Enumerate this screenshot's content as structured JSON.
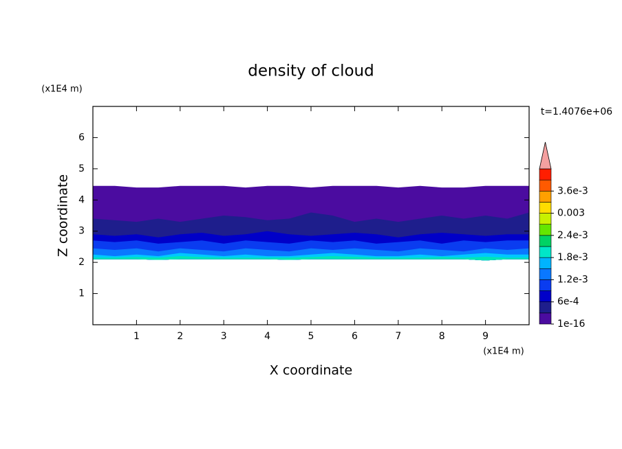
{
  "chart_data": {
    "type": "contour",
    "title": "density of cloud",
    "x_label": "X coordinate",
    "y_label": "Z coordinate",
    "x_unit": "(x1E4 m)",
    "y_unit": "(x1E4 m)",
    "time_label": "t=1.4076e+06",
    "xlim": [
      0,
      10
    ],
    "xticks": [
      1,
      2,
      3,
      4,
      5,
      6,
      7,
      8,
      9
    ],
    "ylim": [
      0,
      7
    ],
    "yticks": [
      1,
      2,
      3,
      4,
      5,
      6
    ],
    "x": [
      0,
      0.5,
      1,
      1.5,
      2,
      2.5,
      3,
      3.5,
      4,
      4.5,
      5,
      5.5,
      6,
      6.5,
      7,
      7.5,
      8,
      8.5,
      9,
      9.5,
      10
    ],
    "base": [
      2.1,
      2.1,
      2.1,
      2.08,
      2.1,
      2.1,
      2.1,
      2.1,
      2.1,
      2.08,
      2.1,
      2.1,
      2.1,
      2.1,
      2.1,
      2.1,
      2.1,
      2.1,
      2.06,
      2.1,
      2.1
    ],
    "bands": [
      {
        "color": "#4b0ca0",
        "top": [
          4.45,
          4.45,
          4.4,
          4.4,
          4.45,
          4.45,
          4.45,
          4.4,
          4.45,
          4.45,
          4.4,
          4.45,
          4.45,
          4.45,
          4.4,
          4.45,
          4.4,
          4.4,
          4.45,
          4.45,
          4.45
        ]
      },
      {
        "color": "#1e1e8c",
        "top": [
          3.4,
          3.35,
          3.3,
          3.4,
          3.3,
          3.4,
          3.5,
          3.45,
          3.35,
          3.4,
          3.6,
          3.5,
          3.3,
          3.4,
          3.3,
          3.4,
          3.5,
          3.4,
          3.5,
          3.4,
          3.6
        ]
      },
      {
        "color": "#0000c8",
        "top": [
          2.9,
          2.85,
          2.9,
          2.8,
          2.9,
          2.95,
          2.85,
          2.9,
          3.0,
          2.9,
          2.85,
          2.9,
          2.95,
          2.9,
          2.8,
          2.9,
          2.95,
          2.9,
          2.85,
          2.9,
          2.9
        ]
      },
      {
        "color": "#0a3cf0",
        "top": [
          2.7,
          2.65,
          2.7,
          2.6,
          2.65,
          2.7,
          2.6,
          2.7,
          2.65,
          2.6,
          2.7,
          2.65,
          2.7,
          2.6,
          2.65,
          2.7,
          2.6,
          2.7,
          2.65,
          2.7,
          2.7
        ]
      },
      {
        "color": "#0a78ff",
        "top": [
          2.45,
          2.4,
          2.45,
          2.35,
          2.45,
          2.4,
          2.35,
          2.45,
          2.4,
          2.35,
          2.45,
          2.4,
          2.45,
          2.4,
          2.35,
          2.45,
          2.4,
          2.35,
          2.45,
          2.4,
          2.45
        ]
      },
      {
        "color": "#00c8ff",
        "top": [
          2.25,
          2.2,
          2.25,
          2.2,
          2.3,
          2.25,
          2.2,
          2.25,
          2.2,
          2.2,
          2.25,
          2.3,
          2.25,
          2.2,
          2.2,
          2.25,
          2.2,
          2.25,
          2.3,
          2.25,
          2.25
        ]
      },
      {
        "color": "#00e6b4",
        "top": [
          2.15,
          2.15,
          2.17,
          2.15,
          2.2,
          2.17,
          2.15,
          2.15,
          2.15,
          2.15,
          2.17,
          2.2,
          2.18,
          2.15,
          2.15,
          2.15,
          2.17,
          2.15,
          2.18,
          2.15,
          2.15
        ]
      }
    ],
    "colorbar": {
      "colors": [
        "#4b0ca0",
        "#1e1e8c",
        "#0000c8",
        "#0a3cf0",
        "#0a78ff",
        "#00b4ff",
        "#00e6c8",
        "#00d264",
        "#64e600",
        "#c8f000",
        "#ffdc00",
        "#ffa000",
        "#ff5a00",
        "#ff1e00"
      ],
      "extend_color": "#f4a0a0",
      "ticks": [
        1e-16,
        {
          "value": 0.0006,
          "label": "6e-4"
        },
        {
          "value": 0.0012,
          "label": "1.2e-3"
        },
        {
          "value": 0.0018,
          "label": "1.8e-3"
        },
        {
          "value": 0.0024,
          "label": "2.4e-3"
        },
        0.003,
        {
          "value": 0.0036,
          "label": "3.6e-3"
        }
      ],
      "clim": [
        1e-16,
        0.0042
      ]
    }
  }
}
